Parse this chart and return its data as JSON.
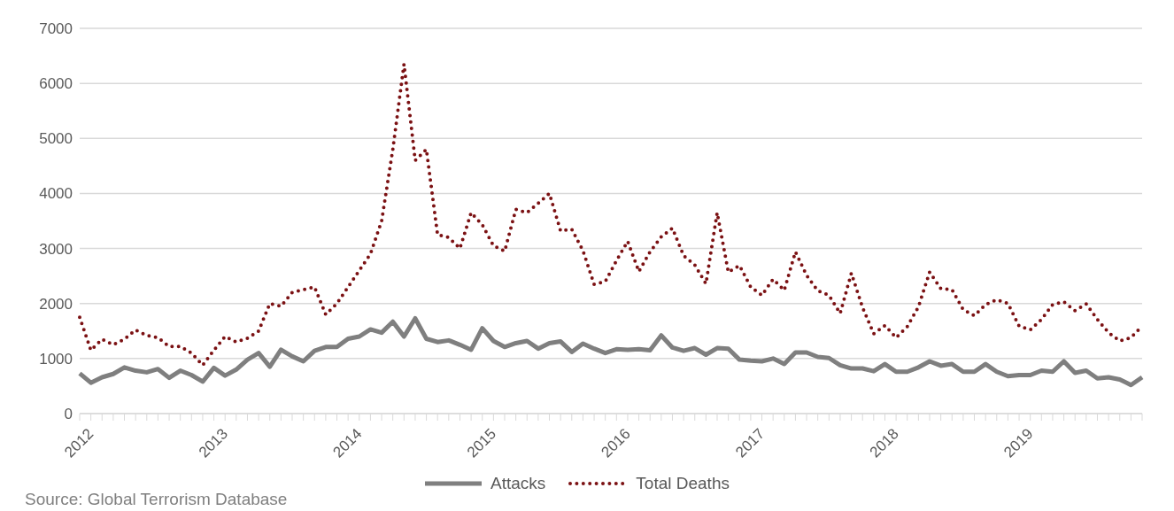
{
  "chart_data": {
    "type": "line",
    "categories": [
      "2012",
      null,
      null,
      null,
      null,
      null,
      null,
      null,
      null,
      null,
      null,
      null,
      "2013",
      null,
      null,
      null,
      null,
      null,
      null,
      null,
      null,
      null,
      null,
      null,
      "2014",
      null,
      null,
      null,
      null,
      null,
      null,
      null,
      null,
      null,
      null,
      null,
      "2015",
      null,
      null,
      null,
      null,
      null,
      null,
      null,
      null,
      null,
      null,
      null,
      "2016",
      null,
      null,
      null,
      null,
      null,
      null,
      null,
      null,
      null,
      null,
      null,
      "2017",
      null,
      null,
      null,
      null,
      null,
      null,
      null,
      null,
      null,
      null,
      null,
      "2018",
      null,
      null,
      null,
      null,
      null,
      null,
      null,
      null,
      null,
      null,
      null,
      "2019",
      null,
      null,
      null,
      null,
      null,
      null,
      null,
      null,
      null,
      null,
      null
    ],
    "series": [
      {
        "name": "Attacks",
        "color": "#7f7f7f",
        "line_style": "solid",
        "values": [
          730,
          560,
          660,
          720,
          840,
          780,
          750,
          810,
          650,
          780,
          700,
          580,
          830,
          690,
          800,
          980,
          1100,
          850,
          1160,
          1040,
          950,
          1140,
          1210,
          1210,
          1360,
          1400,
          1530,
          1470,
          1670,
          1400,
          1730,
          1360,
          1300,
          1330,
          1250,
          1160,
          1550,
          1320,
          1210,
          1280,
          1320,
          1180,
          1280,
          1310,
          1120,
          1270,
          1180,
          1100,
          1170,
          1160,
          1170,
          1150,
          1420,
          1200,
          1140,
          1190,
          1070,
          1190,
          1180,
          980,
          960,
          950,
          1000,
          900,
          1110,
          1110,
          1030,
          1010,
          880,
          820,
          820,
          770,
          900,
          760,
          760,
          840,
          950,
          870,
          900,
          760,
          760,
          900,
          760,
          680,
          700,
          700,
          780,
          760,
          950,
          740,
          780,
          640,
          660,
          620,
          520,
          660
        ]
      },
      {
        "name": "Total Deaths",
        "color": "#7b1113",
        "line_style": "dotted",
        "values": [
          1750,
          1150,
          1350,
          1250,
          1350,
          1520,
          1420,
          1380,
          1220,
          1220,
          1100,
          880,
          1150,
          1400,
          1300,
          1370,
          1500,
          2000,
          1950,
          2200,
          2250,
          2300,
          1800,
          2000,
          2300,
          2600,
          2900,
          3500,
          4800,
          6350,
          4600,
          4800,
          3250,
          3200,
          3000,
          3650,
          3430,
          3050,
          2950,
          3710,
          3650,
          3820,
          4000,
          3320,
          3350,
          2960,
          2350,
          2400,
          2780,
          3130,
          2580,
          2940,
          3210,
          3370,
          2870,
          2700,
          2360,
          3650,
          2570,
          2690,
          2300,
          2150,
          2440,
          2240,
          2940,
          2510,
          2230,
          2150,
          1820,
          2550,
          1930,
          1450,
          1600,
          1380,
          1580,
          1940,
          2570,
          2270,
          2250,
          1890,
          1780,
          1980,
          2070,
          2000,
          1590,
          1520,
          1710,
          1980,
          2030,
          1870,
          1990,
          1710,
          1470,
          1320,
          1380,
          1590
        ]
      }
    ],
    "ylim": [
      0,
      7000
    ],
    "yticks": [
      0,
      1000,
      2000,
      3000,
      4000,
      5000,
      6000,
      7000
    ],
    "grid": "y",
    "legend": "bottom",
    "marker": "none",
    "annotations": [
      "Source: Global Terrorism Database"
    ]
  }
}
